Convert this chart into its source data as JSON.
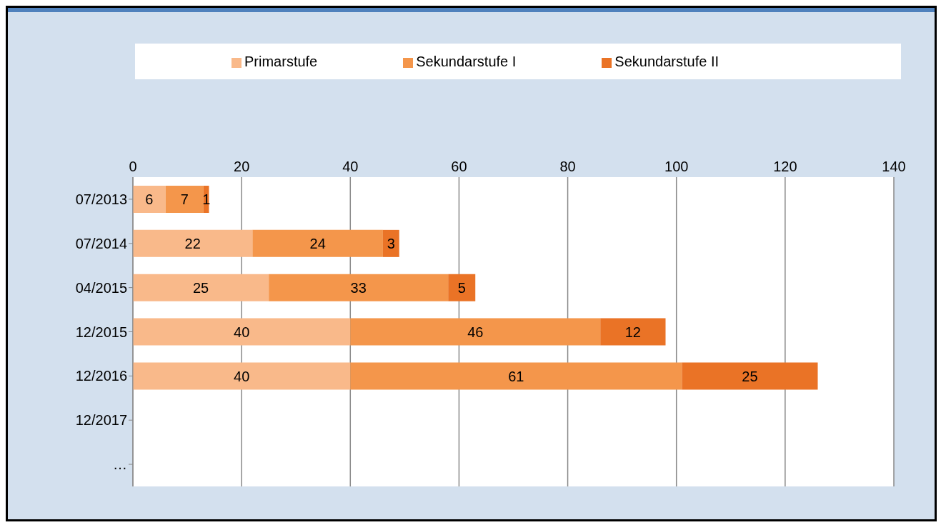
{
  "chart_data": {
    "type": "bar",
    "orientation": "horizontal",
    "stacked": true,
    "categories": [
      "07/2013",
      "07/2014",
      "04/2015",
      "12/2015",
      "12/2016",
      "12/2017",
      "…"
    ],
    "series": [
      {
        "name": "Primarstufe",
        "color": "#f9b98a",
        "values": [
          6,
          22,
          25,
          40,
          40,
          null,
          null
        ]
      },
      {
        "name": "Sekundarstufe I",
        "color": "#f4964b",
        "values": [
          7,
          24,
          33,
          46,
          61,
          null,
          null
        ]
      },
      {
        "name": "Sekundarstufe II",
        "color": "#ea7326",
        "values": [
          1,
          3,
          5,
          12,
          25,
          null,
          null
        ]
      }
    ],
    "xlim": [
      0,
      140
    ],
    "xticks": [
      0,
      20,
      40,
      60,
      80,
      100,
      120,
      140
    ],
    "grid": "x",
    "legend": "top",
    "data_labels": true
  }
}
